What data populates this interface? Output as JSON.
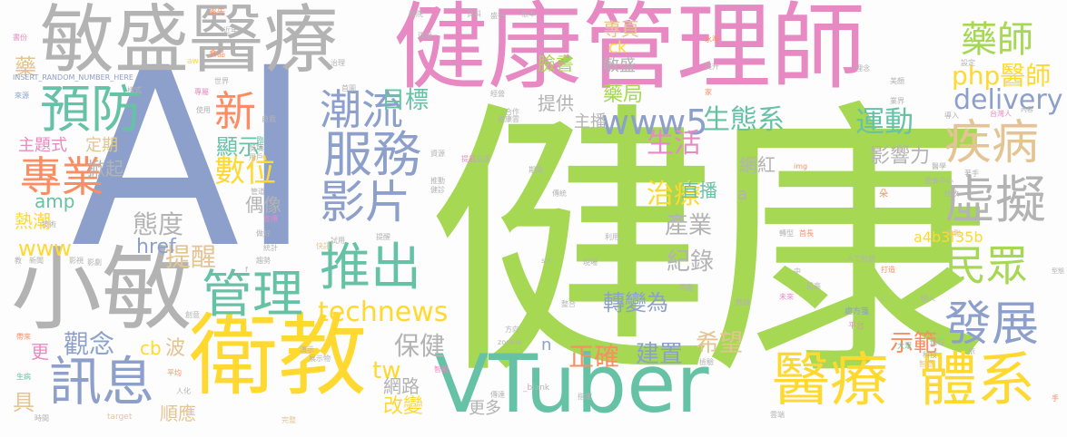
{
  "colors": {
    "green": "#a6d854",
    "blue": "#8da0cb",
    "pink": "#e78ac3",
    "gray": "#b3b3b3",
    "teal": "#66c2a5",
    "yellow": "#ffd92f",
    "tan": "#e5c494",
    "orange": "#fc8d62"
  },
  "words": [
    {
      "text": "健康",
      "color": "green"
    },
    {
      "text": "AI",
      "color": "blue"
    },
    {
      "text": "健康管理師",
      "color": "pink"
    },
    {
      "text": "敏盛醫療",
      "color": "gray"
    },
    {
      "text": "小敏",
      "color": "gray"
    },
    {
      "text": "衛教",
      "color": "yellow"
    },
    {
      "text": "VTuber",
      "color": "teal"
    },
    {
      "text": "醫療",
      "color": "yellow"
    },
    {
      "text": "體系",
      "color": "yellow"
    },
    {
      "text": "推出",
      "color": "teal"
    },
    {
      "text": "服務",
      "color": "blue"
    },
    {
      "text": "管理",
      "color": "teal"
    },
    {
      "text": "訊息",
      "color": "blue"
    },
    {
      "text": "預防",
      "color": "teal"
    },
    {
      "text": "專業",
      "color": "orange"
    },
    {
      "text": "潮流",
      "color": "blue"
    },
    {
      "text": "疾病",
      "color": "tan"
    },
    {
      "text": "虛擬",
      "color": "gray"
    },
    {
      "text": "民眾",
      "color": "green"
    },
    {
      "text": "發展",
      "color": "blue"
    },
    {
      "text": "影片",
      "color": "blue"
    },
    {
      "text": "www5",
      "color": "blue"
    },
    {
      "text": "藥師",
      "color": "green"
    },
    {
      "text": "php醫師",
      "color": "yellow"
    },
    {
      "text": "delivery",
      "color": "blue"
    },
    {
      "text": "運動",
      "color": "teal"
    },
    {
      "text": "生態系",
      "color": "teal"
    },
    {
      "text": "technews",
      "color": "yellow"
    },
    {
      "text": "新",
      "color": "orange"
    },
    {
      "text": "數位",
      "color": "yellow"
    },
    {
      "text": "顯示",
      "color": "teal"
    },
    {
      "text": "目標",
      "color": "teal"
    },
    {
      "text": "保健",
      "color": "gray"
    },
    {
      "text": "觀念",
      "color": "blue"
    },
    {
      "text": "態度",
      "color": "gray"
    },
    {
      "text": "提醒",
      "color": "tan"
    },
    {
      "text": "生活",
      "color": "pink"
    },
    {
      "text": "治療",
      "color": "yellow"
    },
    {
      "text": "產業",
      "color": "gray"
    },
    {
      "text": "紀錄",
      "color": "gray"
    },
    {
      "text": "轉變為",
      "color": "blue"
    },
    {
      "text": "希望",
      "color": "tan"
    },
    {
      "text": "建置",
      "color": "blue"
    },
    {
      "text": "正確",
      "color": "orange"
    },
    {
      "text": "示範",
      "color": "orange"
    },
    {
      "text": "直播",
      "color": "teal"
    },
    {
      "text": "網紅",
      "color": "gray"
    },
    {
      "text": "影響力",
      "color": "gray"
    },
    {
      "text": "a4b3f35b",
      "color": "yellow"
    },
    {
      "text": "藥局",
      "color": "green"
    },
    {
      "text": "主播",
      "color": "gray"
    },
    {
      "text": "提供",
      "color": "gray"
    },
    {
      "text": "臉書",
      "color": "green"
    },
    {
      "text": "敏盛",
      "color": "gray"
    },
    {
      "text": "專頁",
      "color": "tan"
    },
    {
      "text": "ck",
      "color": "yellow"
    },
    {
      "text": "www",
      "color": "yellow"
    },
    {
      "text": "amp",
      "color": "teal"
    },
    {
      "text": "熱潮",
      "color": "yellow"
    },
    {
      "text": "掀起",
      "color": "gray"
    },
    {
      "text": "定期",
      "color": "tan"
    },
    {
      "text": "主題式",
      "color": "pink"
    },
    {
      "text": "藥",
      "color": "tan"
    },
    {
      "text": "偶像",
      "color": "gray"
    },
    {
      "text": "href",
      "color": "blue"
    },
    {
      "text": "tw",
      "color": "yellow"
    },
    {
      "text": "網路",
      "color": "gray"
    },
    {
      "text": "改變",
      "color": "yellow"
    },
    {
      "text": "更多",
      "color": "gray"
    },
    {
      "text": "順應",
      "color": "tan"
    },
    {
      "text": "波",
      "color": "tan"
    },
    {
      "text": "cb",
      "color": "yellow"
    },
    {
      "text": "更",
      "color": "pink"
    },
    {
      "text": "具",
      "color": "tan"
    },
    {
      "text": "n",
      "color": "blue"
    },
    {
      "text": "a",
      "color": "gray"
    },
    {
      "text": "INSERT_RANDOM_NUMBER_HERE",
      "color": "blue"
    },
    {
      "text": "食品",
      "color": "orange"
    },
    {
      "text": "aw",
      "color": "yellow"
    },
    {
      "text": "率先",
      "color": "orange"
    },
    {
      "text": "資料",
      "color": "gray"
    },
    {
      "text": "臨床",
      "color": "teal"
    },
    {
      "text": "技術",
      "color": "gray"
    },
    {
      "text": "宣傳",
      "color": "pink"
    },
    {
      "text": "統計",
      "color": "gray"
    },
    {
      "text": "人工智慧",
      "color": "gray"
    },
    {
      "text": "做好",
      "color": "gray"
    },
    {
      "text": "治理",
      "color": "gray"
    },
    {
      "text": "試用",
      "color": "gray"
    },
    {
      "text": "趨勢",
      "color": "gray"
    },
    {
      "text": "專屬",
      "color": "pink"
    },
    {
      "text": "平台",
      "color": "pink"
    },
    {
      "text": "處方箋",
      "color": "blue"
    },
    {
      "text": "科技",
      "color": "gray"
    },
    {
      "text": "智慧",
      "color": "tan"
    },
    {
      "text": "生病",
      "color": "teal"
    },
    {
      "text": "時間",
      "color": "gray"
    },
    {
      "text": "人化",
      "color": "gray"
    },
    {
      "text": "target",
      "color": "tan"
    },
    {
      "text": "_blank",
      "color": "gray"
    },
    {
      "text": "指定",
      "color": "gray"
    },
    {
      "text": "zoneid",
      "color": "gray"
    },
    {
      "text": "src",
      "color": "gray"
    },
    {
      "text": "img",
      "color": "orange"
    },
    {
      "text": "台灣人",
      "color": "pink"
    },
    {
      "text": "內容",
      "color": "gray"
    },
    {
      "text": "來源",
      "color": "blue"
    },
    {
      "text": "新聞",
      "color": "gray"
    },
    {
      "text": "教",
      "color": "gray"
    },
    {
      "text": "影視",
      "color": "gray"
    },
    {
      "text": "創意",
      "color": "gray"
    },
    {
      "text": "帶來",
      "color": "orange"
    },
    {
      "text": "平均",
      "color": "orange"
    },
    {
      "text": "智能",
      "color": "pink"
    },
    {
      "text": "完整",
      "color": "tan"
    },
    {
      "text": "雲端",
      "color": "gray"
    },
    {
      "text": "提高",
      "color": "gray"
    },
    {
      "text": "未來",
      "color": "pink"
    },
    {
      "text": "數據",
      "color": "gray"
    },
    {
      "text": "帶動",
      "color": "gray"
    },
    {
      "text": "型態",
      "color": "gray"
    },
    {
      "text": "個人",
      "color": "gray"
    },
    {
      "text": "過程",
      "color": "gray"
    },
    {
      "text": "大眾",
      "color": "teal"
    },
    {
      "text": "依",
      "color": "gray"
    },
    {
      "text": "打造",
      "color": "orange"
    },
    {
      "text": "串聯",
      "color": "tan"
    },
    {
      "text": "首長",
      "color": "orange"
    },
    {
      "text": "轉型",
      "color": "gray"
    },
    {
      "text": "醫院",
      "color": "gray"
    },
    {
      "text": "整合",
      "color": "gray"
    },
    {
      "text": "方向",
      "color": "gray"
    },
    {
      "text": "檢驗",
      "color": "gray"
    },
    {
      "text": "傳達",
      "color": "gray"
    },
    {
      "text": "現場",
      "color": "gray"
    },
    {
      "text": "利用",
      "color": "gray"
    },
    {
      "text": "提醒",
      "color": "gray"
    },
    {
      "text": "快訊",
      "color": "tan"
    },
    {
      "text": "合作",
      "color": "gray"
    },
    {
      "text": "家",
      "color": "orange"
    },
    {
      "text": "水準",
      "color": "orange"
    },
    {
      "text": "理念",
      "color": "gray"
    },
    {
      "text": "提升",
      "color": "gray"
    },
    {
      "text": "業界",
      "color": "gray"
    },
    {
      "text": "健康雲",
      "color": "gray"
    },
    {
      "text": "盛行",
      "color": "gray"
    },
    {
      "text": "首圖",
      "color": "gray"
    },
    {
      "text": "環境",
      "color": "gray"
    },
    {
      "text": "經營",
      "color": "gray"
    },
    {
      "text": "影劇",
      "color": "gray"
    },
    {
      "text": "管道",
      "color": "gray"
    },
    {
      "text": "用戶",
      "color": "gray"
    },
    {
      "text": "使用",
      "color": "gray"
    },
    {
      "text": "自我",
      "color": "gray"
    },
    {
      "text": "獎項",
      "color": "gray"
    },
    {
      "text": "世界",
      "color": "gray"
    },
    {
      "text": "樣式",
      "color": "gray"
    },
    {
      "text": "近年",
      "color": "gray"
    },
    {
      "text": "書份",
      "color": "pink"
    },
    {
      "text": "資源",
      "color": "gray"
    },
    {
      "text": "推動",
      "color": "gray"
    },
    {
      "text": "根本",
      "color": "gray"
    },
    {
      "text": "營養中心",
      "color": "gray"
    },
    {
      "text": "接收",
      "color": "gray"
    },
    {
      "text": "醫學",
      "color": "gray"
    },
    {
      "text": "著手",
      "color": "gray"
    },
    {
      "text": "導入",
      "color": "gray"
    },
    {
      "text": "設定",
      "color": "gray"
    },
    {
      "text": "美顏",
      "color": "gray"
    },
    {
      "text": "傳統",
      "color": "gray"
    },
    {
      "text": "期間",
      "color": "gray"
    },
    {
      "text": "品質",
      "color": "gray"
    },
    {
      "text": "提前",
      "color": "pink"
    },
    {
      "text": "健診",
      "color": "gray"
    },
    {
      "text": "演示",
      "color": "gray"
    },
    {
      "text": "展示物",
      "color": "gray"
    },
    {
      "text": "中",
      "color": "gray"
    },
    {
      "text": "朵",
      "color": "orange"
    },
    {
      "text": "c",
      "color": "gray"
    },
    {
      "text": "f",
      "color": "gray"
    },
    {
      "text": "手",
      "color": "orange"
    }
  ]
}
